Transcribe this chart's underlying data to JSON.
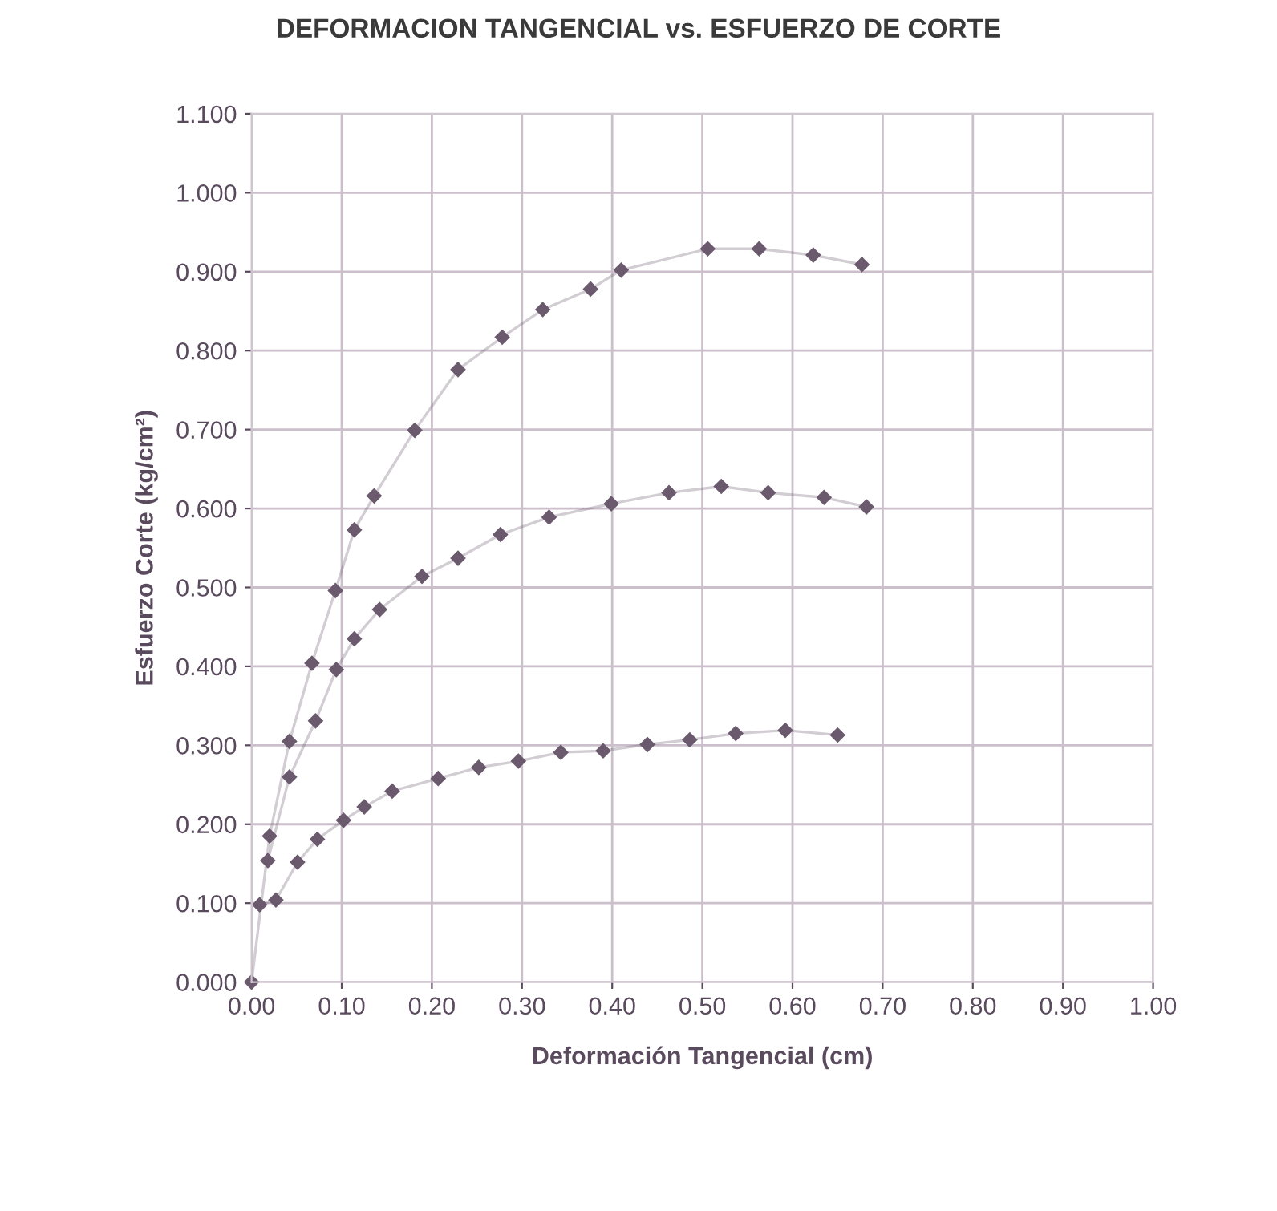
{
  "chart_data": {
    "type": "line",
    "title": "DEFORMACION TANGENCIAL vs. ESFUERZO DE CORTE",
    "xlabel": "Deformación Tangencial (cm)",
    "ylabel": "Esfuerzo Corte (kg/cm²)",
    "marker": "diamond",
    "grid": true,
    "xlim": [
      0,
      1
    ],
    "ylim": [
      0,
      1.1
    ],
    "xticks": [
      {
        "value": 0,
        "label": "0.00"
      },
      {
        "value": 0.1,
        "label": "0.10"
      },
      {
        "value": 0.2,
        "label": "0.20"
      },
      {
        "value": 0.3,
        "label": "0.30"
      },
      {
        "value": 0.4,
        "label": "0.40"
      },
      {
        "value": 0.5,
        "label": "0.50"
      },
      {
        "value": 0.6,
        "label": "0.60"
      },
      {
        "value": 0.7,
        "label": "0.70"
      },
      {
        "value": 0.8,
        "label": "0.80"
      },
      {
        "value": 0.9,
        "label": "0.90"
      },
      {
        "value": 1,
        "label": "1.00"
      }
    ],
    "yticks": [
      {
        "value": 0,
        "label": "0.000"
      },
      {
        "value": 0.1,
        "label": "0.100"
      },
      {
        "value": 0.2,
        "label": "0.200"
      },
      {
        "value": 0.3,
        "label": "0.300"
      },
      {
        "value": 0.4,
        "label": "0.400"
      },
      {
        "value": 0.5,
        "label": "0.500"
      },
      {
        "value": 0.6,
        "label": "0.600"
      },
      {
        "value": 0.7,
        "label": "0.700"
      },
      {
        "value": 0.8,
        "label": "0.800"
      },
      {
        "value": 0.9,
        "label": "0.900"
      },
      {
        "value": 1.0,
        "label": "1.000"
      },
      {
        "value": 1.1,
        "label": "1.100"
      }
    ],
    "series": [
      {
        "color": "#6b5a6e",
        "x": [
          0.0,
          0.02,
          0.042,
          0.067,
          0.093,
          0.114,
          0.136,
          0.181,
          0.229,
          0.278,
          0.323,
          0.376,
          0.41,
          0.506,
          0.563,
          0.623,
          0.677
        ],
        "values": [
          0.0,
          0.185,
          0.305,
          0.404,
          0.496,
          0.573,
          0.616,
          0.699,
          0.776,
          0.817,
          0.852,
          0.878,
          0.902,
          0.929,
          0.929,
          0.921,
          0.909
        ]
      },
      {
        "color": "#6b5a6e",
        "x": [
          0.018,
          0.042,
          0.071,
          0.094,
          0.114,
          0.142,
          0.189,
          0.229,
          0.276,
          0.33,
          0.399,
          0.463,
          0.521,
          0.573,
          0.635,
          0.682
        ],
        "values": [
          0.154,
          0.26,
          0.331,
          0.396,
          0.435,
          0.472,
          0.514,
          0.537,
          0.567,
          0.589,
          0.606,
          0.62,
          0.628,
          0.62,
          0.614,
          0.602
        ]
      },
      {
        "color": "#6b5a6e",
        "x": [
          0.009,
          0.027,
          0.051,
          0.073,
          0.102,
          0.125,
          0.156,
          0.207,
          0.252,
          0.296,
          0.343,
          0.39,
          0.439,
          0.486,
          0.537,
          0.592,
          0.65
        ],
        "values": [
          0.098,
          0.104,
          0.152,
          0.181,
          0.205,
          0.222,
          0.242,
          0.258,
          0.272,
          0.28,
          0.291,
          0.293,
          0.301,
          0.307,
          0.315,
          0.319,
          0.313
        ]
      }
    ]
  }
}
